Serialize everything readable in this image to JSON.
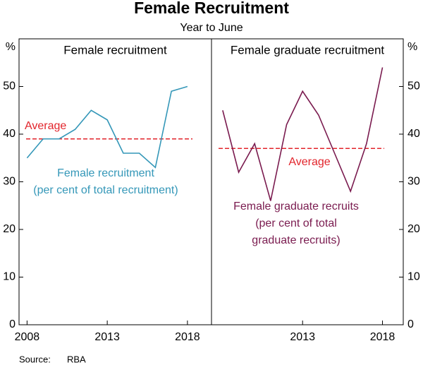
{
  "title": "Female Recruitment",
  "subtitle": "Year to June",
  "source_label": "Source:",
  "source": "RBA",
  "chart_data": [
    {
      "type": "line",
      "title": "Female recruitment",
      "y_unit": "%",
      "x": [
        2008,
        2009,
        2010,
        2011,
        2012,
        2013,
        2014,
        2015,
        2016,
        2017,
        2018
      ],
      "series": [
        {
          "name": [
            "Female recruitment",
            "(per cent of total recruitment)"
          ],
          "color": "#3497b8",
          "values": [
            35,
            39,
            39,
            41,
            45,
            43,
            36,
            36,
            33,
            49,
            50
          ]
        }
      ],
      "reference_line": {
        "label": "Average",
        "value": 39,
        "color": "#e2242b"
      },
      "xlim": [
        2007.5,
        2019.5
      ],
      "xticks": [
        2008,
        2013,
        2018
      ],
      "ylim": [
        0,
        60
      ],
      "yticks": [
        0,
        10,
        20,
        30,
        40,
        50
      ],
      "y_axis_side": "left"
    },
    {
      "type": "line",
      "title": "Female graduate recruitment",
      "y_unit": "%",
      "x": [
        2008,
        2009,
        2010,
        2011,
        2012,
        2013,
        2014,
        2015,
        2016,
        2017,
        2018
      ],
      "series": [
        {
          "name": [
            "Female graduate recruits",
            "(per cent of total",
            "graduate recruits)"
          ],
          "color": "#7a1b4f",
          "values": [
            45,
            32,
            38,
            26,
            42,
            49,
            44,
            36,
            28,
            38,
            54
          ]
        }
      ],
      "reference_line": {
        "label": "Average",
        "value": 37,
        "color": "#e2242b"
      },
      "xlim": [
        2007.3,
        2019.3
      ],
      "xticks": [
        2013,
        2018
      ],
      "ylim": [
        0,
        60
      ],
      "yticks": [
        0,
        10,
        20,
        30,
        40,
        50
      ],
      "y_axis_side": "right"
    }
  ]
}
